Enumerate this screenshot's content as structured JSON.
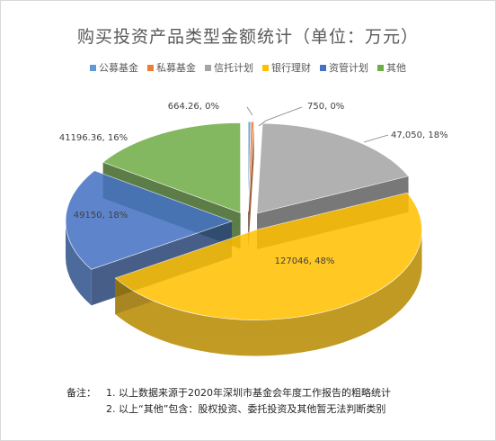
{
  "chart_data": {
    "type": "pie",
    "title": "购买投资产品类型金额统计（单位：万元）",
    "categories": [
      "公募基金",
      "私募基金",
      "信托计划",
      "银行理财",
      "资管计划",
      "其他"
    ],
    "values": [
      664.26,
      750,
      47050,
      127046,
      49150,
      41196.36
    ],
    "data_labels": [
      "664.26, 0%",
      "750, 0%",
      "47,050, 18%",
      "127046, 48%",
      "49150, 18%",
      "41196.36, 16%"
    ],
    "colors": [
      "#5b9bd5",
      "#ed7d31",
      "#a5a5a5",
      "#ffc000",
      "#4472c4",
      "#70ad47"
    ],
    "legend_position": "top",
    "style": "3d-exploded"
  },
  "notes": {
    "prefix": "备注：",
    "line1": "1. 以上数据来源于2020年深圳市基金会年度工作报告的粗略统计",
    "line2": "2. 以上“其他”包含：股权投资、委托投资及其他暂无法判断类别"
  }
}
